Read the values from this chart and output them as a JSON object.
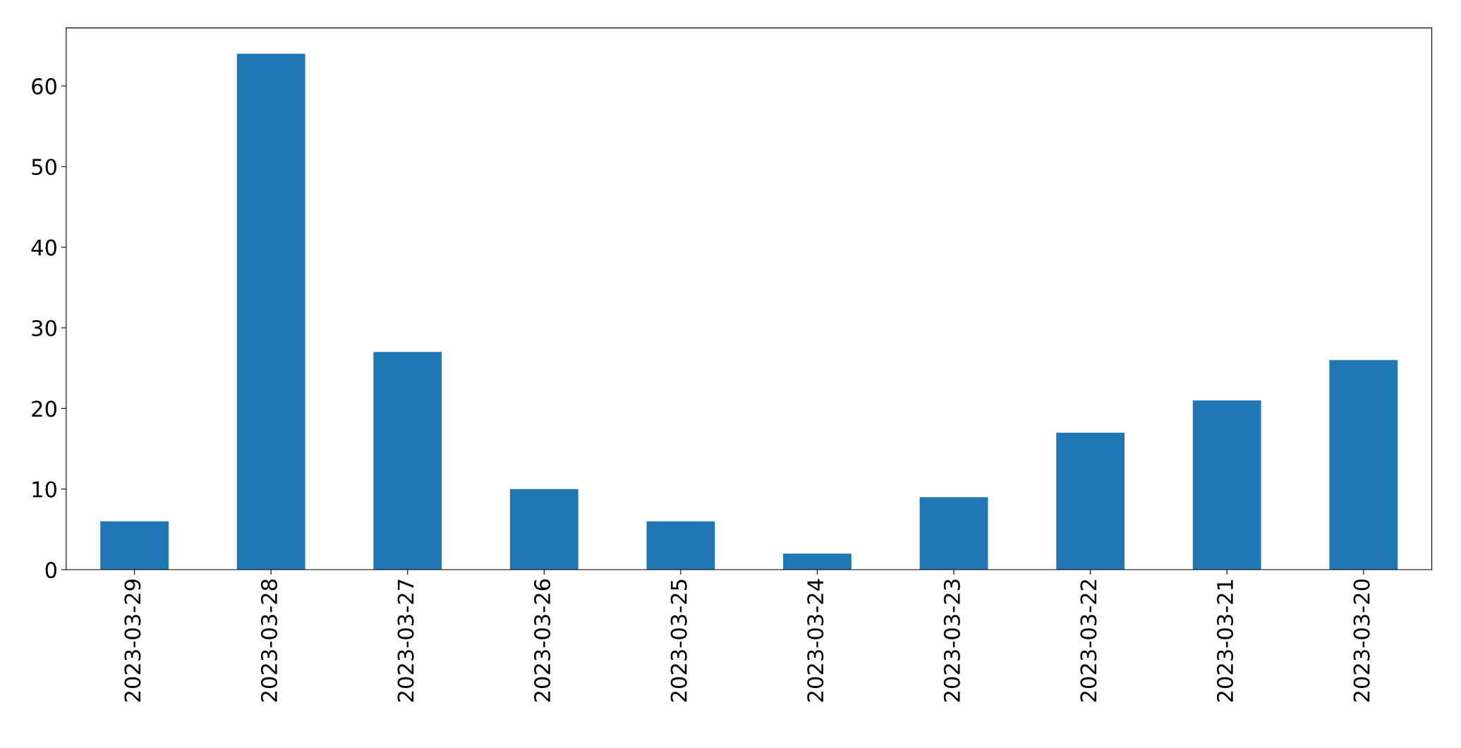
{
  "chart_data": {
    "type": "bar",
    "categories": [
      "2023-03-29",
      "2023-03-28",
      "2023-03-27",
      "2023-03-26",
      "2023-03-25",
      "2023-03-24",
      "2023-03-23",
      "2023-03-22",
      "2023-03-21",
      "2023-03-20"
    ],
    "values": [
      6,
      64,
      27,
      10,
      6,
      2,
      9,
      17,
      21,
      26
    ],
    "color": "#1f77b4",
    "ylim": [
      0,
      67.2
    ],
    "yticks": [
      0,
      10,
      20,
      30,
      40,
      50,
      60
    ],
    "grid": false,
    "legend": false
  }
}
